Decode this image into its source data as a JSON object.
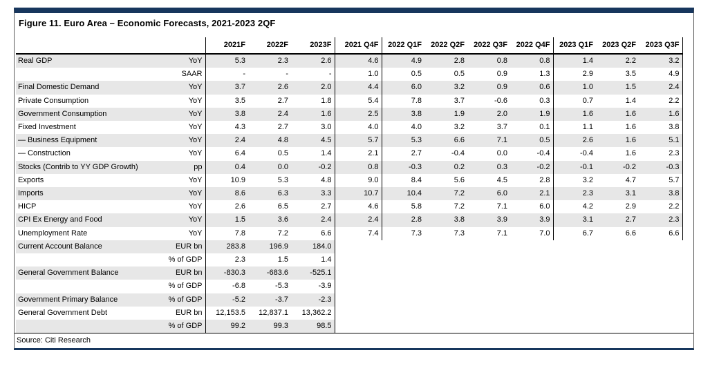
{
  "figure": {
    "title": "Figure 11. Euro Area – Economic Forecasts, 2021-2023 2QF",
    "source": "Source: Citi Research"
  },
  "colors": {
    "accent_navy": "#17365d",
    "row_shade": "#e7e7e7"
  },
  "table": {
    "columns": [
      "2021F",
      "2022F",
      "2023F",
      "2021 Q4F",
      "2022 Q1F",
      "2022 Q2F",
      "2022 Q3F",
      "2022 Q4F",
      "2023 Q1F",
      "2023 Q2F",
      "2023 Q3F"
    ],
    "rows": [
      {
        "label": "Real GDP",
        "unit": "YoY",
        "values": [
          "5.3",
          "2.3",
          "2.6",
          "4.6",
          "4.9",
          "2.8",
          "0.8",
          "0.8",
          "1.4",
          "2.2",
          "3.2"
        ]
      },
      {
        "label": "",
        "unit": "SAAR",
        "values": [
          "-",
          "-",
          "-",
          "1.0",
          "0.5",
          "0.5",
          "0.9",
          "1.3",
          "2.9",
          "3.5",
          "4.9"
        ]
      },
      {
        "label": "Final Domestic Demand",
        "unit": "YoY",
        "values": [
          "3.7",
          "2.6",
          "2.0",
          "4.4",
          "6.0",
          "3.2",
          "0.9",
          "0.6",
          "1.0",
          "1.5",
          "2.4"
        ]
      },
      {
        "label": "Private Consumption",
        "unit": "YoY",
        "values": [
          "3.5",
          "2.7",
          "1.8",
          "5.4",
          "7.8",
          "3.7",
          "-0.6",
          "0.3",
          "0.7",
          "1.4",
          "2.2"
        ]
      },
      {
        "label": "Government Consumption",
        "unit": "YoY",
        "values": [
          "3.8",
          "2.4",
          "1.6",
          "2.5",
          "3.8",
          "1.9",
          "2.0",
          "1.9",
          "1.6",
          "1.6",
          "1.6"
        ]
      },
      {
        "label": "Fixed Investment",
        "unit": "YoY",
        "values": [
          "4.3",
          "2.7",
          "3.0",
          "4.0",
          "4.0",
          "3.2",
          "3.7",
          "0.1",
          "1.1",
          "1.6",
          "3.8"
        ]
      },
      {
        "label": "— Business Equipment",
        "unit": "YoY",
        "values": [
          "2.4",
          "4.8",
          "4.5",
          "5.7",
          "5.3",
          "6.6",
          "7.1",
          "0.5",
          "2.6",
          "1.6",
          "5.1"
        ]
      },
      {
        "label": "— Construction",
        "unit": "YoY",
        "values": [
          "6.4",
          "0.5",
          "1.4",
          "2.1",
          "2.7",
          "-0.4",
          "0.0",
          "-0.4",
          "-0.4",
          "1.6",
          "2.3"
        ]
      },
      {
        "label": "Stocks (Contrib to YY GDP Growth)",
        "unit": "pp",
        "values": [
          "0.4",
          "0.0",
          "-0.2",
          "0.8",
          "-0.3",
          "0.2",
          "0.3",
          "-0.2",
          "-0.1",
          "-0.2",
          "-0.3"
        ]
      },
      {
        "label": "Exports",
        "unit": "YoY",
        "values": [
          "10.9",
          "5.3",
          "4.8",
          "9.0",
          "8.4",
          "5.6",
          "4.5",
          "2.8",
          "3.2",
          "4.7",
          "5.7"
        ]
      },
      {
        "label": "Imports",
        "unit": "YoY",
        "values": [
          "8.6",
          "6.3",
          "3.3",
          "10.7",
          "10.4",
          "7.2",
          "6.0",
          "2.1",
          "2.3",
          "3.1",
          "3.8"
        ]
      },
      {
        "label": "HICP",
        "unit": "YoY",
        "values": [
          "2.6",
          "6.5",
          "2.7",
          "4.6",
          "5.8",
          "7.2",
          "7.1",
          "6.0",
          "4.2",
          "2.9",
          "2.2"
        ]
      },
      {
        "label": "CPI Ex Energy and Food",
        "unit": "YoY",
        "values": [
          "1.5",
          "3.6",
          "2.4",
          "2.4",
          "2.8",
          "3.8",
          "3.9",
          "3.9",
          "3.1",
          "2.7",
          "2.3"
        ]
      },
      {
        "label": "Unemployment Rate",
        "unit": "YoY",
        "values": [
          "7.8",
          "7.2",
          "6.6",
          "7.4",
          "7.3",
          "7.3",
          "7.1",
          "7.0",
          "6.7",
          "6.6",
          "6.6"
        ]
      },
      {
        "label": "Current Account Balance",
        "unit": "EUR bn",
        "values": [
          "283.8",
          "196.9",
          "184.0"
        ]
      },
      {
        "label": "",
        "unit": "% of GDP",
        "values": [
          "2.3",
          "1.5",
          "1.4"
        ]
      },
      {
        "label": "General Government Balance",
        "unit": "EUR bn",
        "values": [
          "-830.3",
          "-683.6",
          "-525.1"
        ]
      },
      {
        "label": "",
        "unit": "% of GDP",
        "values": [
          "-6.8",
          "-5.3",
          "-3.9"
        ]
      },
      {
        "label": "Government Primary Balance",
        "unit": "% of GDP",
        "values": [
          "-5.2",
          "-3.7",
          "-2.3"
        ]
      },
      {
        "label": "General Government Debt",
        "unit": "EUR bn",
        "values": [
          "12,153.5",
          "12,837.1",
          "13,362.2"
        ]
      },
      {
        "label": "",
        "unit": "% of GDP",
        "values": [
          "99.2",
          "99.3",
          "98.5"
        ]
      }
    ]
  }
}
